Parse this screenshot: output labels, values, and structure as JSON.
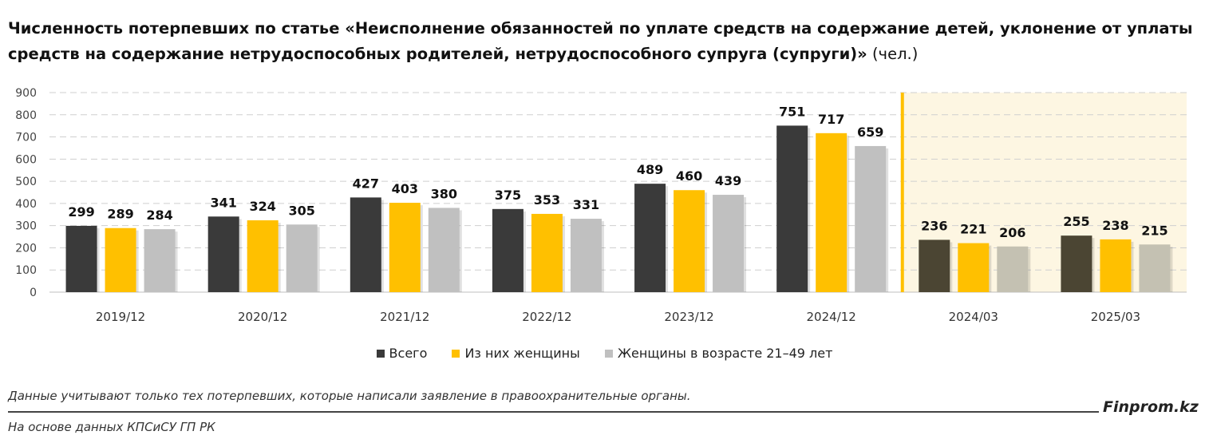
{
  "title": {
    "bold": "Численность потерпевших по статье «Неисполнение обязанностей по уплате средств на содержание детей, уклонение от уплаты средств на содержание нетрудоспособных родителей, нетрудоспособного супруга (супруги)»",
    "unit": " (чел.)"
  },
  "footer": {
    "note": "Данные учитывают только тех потерпевших, которые написали заявление в правоохранительные органы.",
    "brand": "Finprom.kz",
    "source": "На основе данных КПСиСУ ГП РК"
  },
  "colors": {
    "all": "#3a3a3a",
    "women": "#ffc000",
    "women_age": "#c0c0c0",
    "all_q": "#4b4533",
    "women_age_q": "#c4c1b2",
    "highlight_bg": "#fdf6e2",
    "divider": "#ffc000"
  },
  "chart_data": {
    "type": "bar",
    "title": "Численность потерпевших по статье «Неисполнение обязанностей по уплате средств на содержание детей, уклонение от уплаты средств на содержание нетрудоспособных родителей, нетрудоспособного супруга (супруги)» (чел.)",
    "categories": [
      "2019/12",
      "2020/12",
      "2021/12",
      "2022/12",
      "2023/12",
      "2024/12",
      "2024/03",
      "2025/03"
    ],
    "highlighted_categories": [
      "2024/03",
      "2025/03"
    ],
    "series": [
      {
        "name": "Всего",
        "values": [
          299,
          341,
          427,
          375,
          489,
          751,
          236,
          255
        ]
      },
      {
        "name": "Из них женщины",
        "values": [
          289,
          324,
          403,
          353,
          460,
          717,
          221,
          238
        ]
      },
      {
        "name": "Женщины в возрасте 21–49 лет",
        "values": [
          284,
          305,
          380,
          331,
          439,
          659,
          206,
          215
        ]
      }
    ],
    "ylim": [
      0,
      900
    ],
    "yticks": [
      0,
      100,
      200,
      300,
      400,
      500,
      600,
      700,
      800,
      900
    ],
    "grid": true,
    "legend": "bottom-center",
    "xlabel": "",
    "ylabel": ""
  }
}
